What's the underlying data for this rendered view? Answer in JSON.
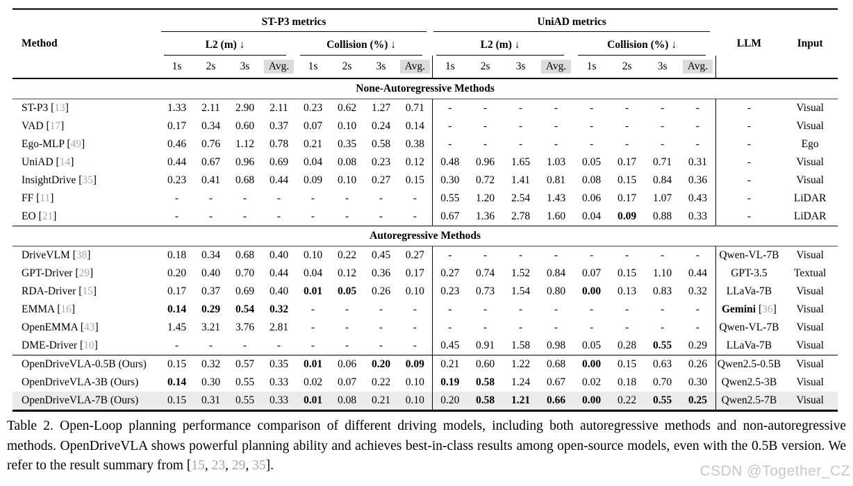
{
  "colors": {
    "citation_ref": "#a6a0cc",
    "avg_header_bg": "#dcdcdc",
    "highlight_row_bg": "#ececec",
    "watermark": "#c8c8c8",
    "rule": "#000000"
  },
  "table": {
    "header": {
      "method_label": "Method",
      "group1": "ST-P3 metrics",
      "group2": "UniAD metrics",
      "metric_l2": "L2 (m) ↓",
      "metric_col": "Collision (%) ↓",
      "time_cols": [
        "1s",
        "2s",
        "3s",
        "Avg."
      ],
      "llm_label": "LLM",
      "input_label": "Input"
    },
    "sections": [
      {
        "title": "None-Autoregressive Methods",
        "rows": [
          {
            "method": "ST-P3",
            "ref": "13",
            "vals": [
              "1.33",
              "2.11",
              "2.90",
              "2.11",
              "0.23",
              "0.62",
              "1.27",
              "0.71",
              "-",
              "-",
              "-",
              "-",
              "-",
              "-",
              "-",
              "-"
            ],
            "bold": [],
            "llm": {
              "text": "-"
            },
            "input": "Visual"
          },
          {
            "method": "VAD",
            "ref": "17",
            "vals": [
              "0.17",
              "0.34",
              "0.60",
              "0.37",
              "0.07",
              "0.10",
              "0.24",
              "0.14",
              "-",
              "-",
              "-",
              "-",
              "-",
              "-",
              "-",
              "-"
            ],
            "bold": [],
            "llm": {
              "text": "-"
            },
            "input": "Visual"
          },
          {
            "method": "Ego-MLP",
            "ref": "49",
            "vals": [
              "0.46",
              "0.76",
              "1.12",
              "0.78",
              "0.21",
              "0.35",
              "0.58",
              "0.38",
              "-",
              "-",
              "-",
              "-",
              "-",
              "-",
              "-",
              "-"
            ],
            "bold": [],
            "llm": {
              "text": "-"
            },
            "input": "Ego"
          },
          {
            "method": "UniAD",
            "ref": "14",
            "vals": [
              "0.44",
              "0.67",
              "0.96",
              "0.69",
              "0.04",
              "0.08",
              "0.23",
              "0.12",
              "0.48",
              "0.96",
              "1.65",
              "1.03",
              "0.05",
              "0.17",
              "0.71",
              "0.31"
            ],
            "bold": [],
            "llm": {
              "text": "-"
            },
            "input": "Visual"
          },
          {
            "method": "InsightDrive",
            "ref": "35",
            "vals": [
              "0.23",
              "0.41",
              "0.68",
              "0.44",
              "0.09",
              "0.10",
              "0.27",
              "0.15",
              "0.30",
              "0.72",
              "1.41",
              "0.81",
              "0.08",
              "0.15",
              "0.84",
              "0.36"
            ],
            "bold": [],
            "llm": {
              "text": "-"
            },
            "input": "Visual"
          },
          {
            "method": "FF",
            "ref": "11",
            "vals": [
              "-",
              "-",
              "-",
              "-",
              "-",
              "-",
              "-",
              "-",
              "0.55",
              "1.20",
              "2.54",
              "1.43",
              "0.06",
              "0.17",
              "1.07",
              "0.43"
            ],
            "bold": [],
            "llm": {
              "text": "-"
            },
            "input": "LiDAR"
          },
          {
            "method": "EO",
            "ref": "21",
            "vals": [
              "-",
              "-",
              "-",
              "-",
              "-",
              "-",
              "-",
              "-",
              "0.67",
              "1.36",
              "2.78",
              "1.60",
              "0.04",
              "0.09",
              "0.88",
              "0.33"
            ],
            "bold": [
              13
            ],
            "llm": {
              "text": "-"
            },
            "input": "LiDAR"
          }
        ]
      },
      {
        "title": "Autoregressive Methods",
        "rows": [
          {
            "method": "DriveVLM",
            "ref": "38",
            "vals": [
              "0.18",
              "0.34",
              "0.68",
              "0.40",
              "0.10",
              "0.22",
              "0.45",
              "0.27",
              "-",
              "-",
              "-",
              "-",
              "-",
              "-",
              "-",
              "-"
            ],
            "bold": [],
            "llm": {
              "text": "Qwen-VL-7B"
            },
            "input": "Visual"
          },
          {
            "method": "GPT-Driver",
            "ref": "29",
            "vals": [
              "0.20",
              "0.40",
              "0.70",
              "0.44",
              "0.04",
              "0.12",
              "0.36",
              "0.17",
              "0.27",
              "0.74",
              "1.52",
              "0.84",
              "0.07",
              "0.15",
              "1.10",
              "0.44"
            ],
            "bold": [],
            "llm": {
              "text": "GPT-3.5"
            },
            "input": "Textual"
          },
          {
            "method": "RDA-Driver",
            "ref": "15",
            "vals": [
              "0.17",
              "0.37",
              "0.69",
              "0.40",
              "0.01",
              "0.05",
              "0.26",
              "0.10",
              "0.23",
              "0.73",
              "1.54",
              "0.80",
              "0.00",
              "0.13",
              "0.83",
              "0.32"
            ],
            "bold": [
              4,
              5,
              12
            ],
            "llm": {
              "text": "LLaVa-7B"
            },
            "input": "Visual"
          },
          {
            "method": "EMMA",
            "ref": "16",
            "vals": [
              "0.14",
              "0.29",
              "0.54",
              "0.32",
              "-",
              "-",
              "-",
              "-",
              "-",
              "-",
              "-",
              "-",
              "-",
              "-",
              "-",
              "-"
            ],
            "bold": [
              0,
              1,
              2,
              3
            ],
            "llm": {
              "text": "Gemini",
              "bold": true,
              "ref": "36"
            },
            "input": "Visual"
          },
          {
            "method": "OpenEMMA",
            "ref": "43",
            "vals": [
              "1.45",
              "3.21",
              "3.76",
              "2.81",
              "-",
              "-",
              "-",
              "-",
              "-",
              "-",
              "-",
              "-",
              "-",
              "-",
              "-",
              "-"
            ],
            "bold": [],
            "llm": {
              "text": "Qwen-VL-7B"
            },
            "input": "Visual"
          },
          {
            "method": "DME-Driver",
            "ref": "10",
            "vals": [
              "-",
              "-",
              "-",
              "-",
              "-",
              "-",
              "-",
              "-",
              "0.45",
              "0.91",
              "1.58",
              "0.98",
              "0.05",
              "0.28",
              "0.55",
              "0.29"
            ],
            "bold": [
              14
            ],
            "llm": {
              "text": "LLaVa-7B"
            },
            "input": "Visual"
          }
        ]
      },
      {
        "title": null,
        "rows": [
          {
            "method": "OpenDriveVLA-0.5B (Ours)",
            "ref": null,
            "vals": [
              "0.15",
              "0.32",
              "0.57",
              "0.35",
              "0.01",
              "0.06",
              "0.20",
              "0.09",
              "0.21",
              "0.60",
              "1.22",
              "0.68",
              "0.00",
              "0.15",
              "0.63",
              "0.26"
            ],
            "bold": [
              4,
              6,
              7,
              12
            ],
            "llm": {
              "text": "Qwen2.5-0.5B"
            },
            "input": "Visual"
          },
          {
            "method": "OpenDriveVLA-3B (Ours)",
            "ref": null,
            "vals": [
              "0.14",
              "0.30",
              "0.55",
              "0.33",
              "0.02",
              "0.07",
              "0.22",
              "0.10",
              "0.19",
              "0.58",
              "1.24",
              "0.67",
              "0.02",
              "0.18",
              "0.70",
              "0.30"
            ],
            "bold": [
              0,
              8,
              9
            ],
            "llm": {
              "text": "Qwen2.5-3B"
            },
            "input": "Visual"
          },
          {
            "method": "OpenDriveVLA-7B (Ours)",
            "ref": null,
            "vals": [
              "0.15",
              "0.31",
              "0.55",
              "0.33",
              "0.01",
              "0.08",
              "0.21",
              "0.10",
              "0.20",
              "0.58",
              "1.21",
              "0.66",
              "0.00",
              "0.22",
              "0.55",
              "0.25"
            ],
            "bold": [
              4,
              9,
              10,
              11,
              12,
              14,
              15
            ],
            "llm": {
              "text": "Qwen2.5-7B"
            },
            "input": "Visual",
            "highlight": true
          }
        ]
      }
    ]
  },
  "caption": {
    "parts": [
      {
        "text": "Table 2.  Open-Loop planning performance comparison of different driving models, including both autoregressive methods and non-autoregressive methods. OpenDriveVLA shows powerful planning ability and achieves best-in-class results among open-source models, even with the 0.5B version. We refer to the result summary from ["
      },
      {
        "text": "15",
        "ref": true
      },
      {
        "text": ", "
      },
      {
        "text": "23",
        "ref": true
      },
      {
        "text": ", "
      },
      {
        "text": "29",
        "ref": true
      },
      {
        "text": ", "
      },
      {
        "text": "35",
        "ref": true
      },
      {
        "text": "]."
      }
    ]
  },
  "watermark": "CSDN @Together_CZ"
}
